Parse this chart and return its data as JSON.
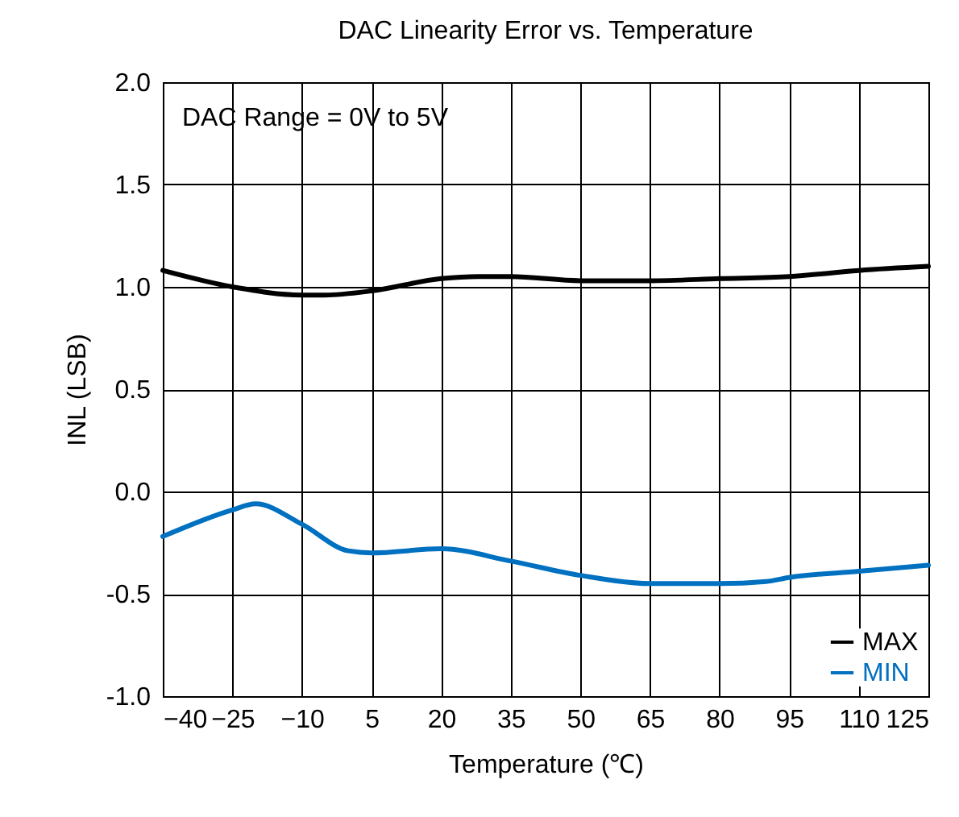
{
  "chart_data": {
    "type": "line",
    "title": "DAC Linearity Error vs. Temperature",
    "xlabel": "Temperature (℃)",
    "ylabel": "INL (LSB)",
    "annotations": [
      "DAC Range = 0V to 5V"
    ],
    "xlim": [
      -40,
      125
    ],
    "xticks": [
      -40,
      -25,
      -10,
      5,
      20,
      35,
      50,
      65,
      80,
      95,
      110,
      125
    ],
    "ylim": [
      -1,
      2
    ],
    "yticks": [
      {
        "value": -1,
        "label": "-1.0"
      },
      -0.5,
      {
        "value": 0,
        "label": "0.0"
      },
      0.5,
      {
        "value": 1,
        "label": "1.0"
      },
      1.5,
      {
        "value": 2,
        "label": "2.0"
      }
    ],
    "grid": true,
    "legend": "bottom right",
    "marker": "none",
    "line_style": "solid",
    "series": [
      {
        "name": "MAX",
        "color": "#000000",
        "x": [
          -40,
          -25,
          -10,
          -5,
          5,
          20,
          28,
          35,
          50,
          65,
          80,
          95,
          110,
          125
        ],
        "values": [
          1.08,
          1.0,
          0.96,
          0.96,
          0.98,
          1.04,
          1.05,
          1.05,
          1.03,
          1.03,
          1.04,
          1.05,
          1.08,
          1.1
        ]
      },
      {
        "name": "MIN",
        "color": "#0070c0",
        "x": [
          -40,
          -25,
          -20,
          -10,
          0,
          5,
          20,
          35,
          50,
          65,
          80,
          90,
          95,
          110,
          125
        ],
        "values": [
          -0.22,
          -0.09,
          -0.06,
          -0.16,
          -0.29,
          -0.3,
          -0.28,
          -0.34,
          -0.41,
          -0.45,
          -0.45,
          -0.44,
          -0.42,
          -0.39,
          -0.36
        ]
      }
    ]
  }
}
